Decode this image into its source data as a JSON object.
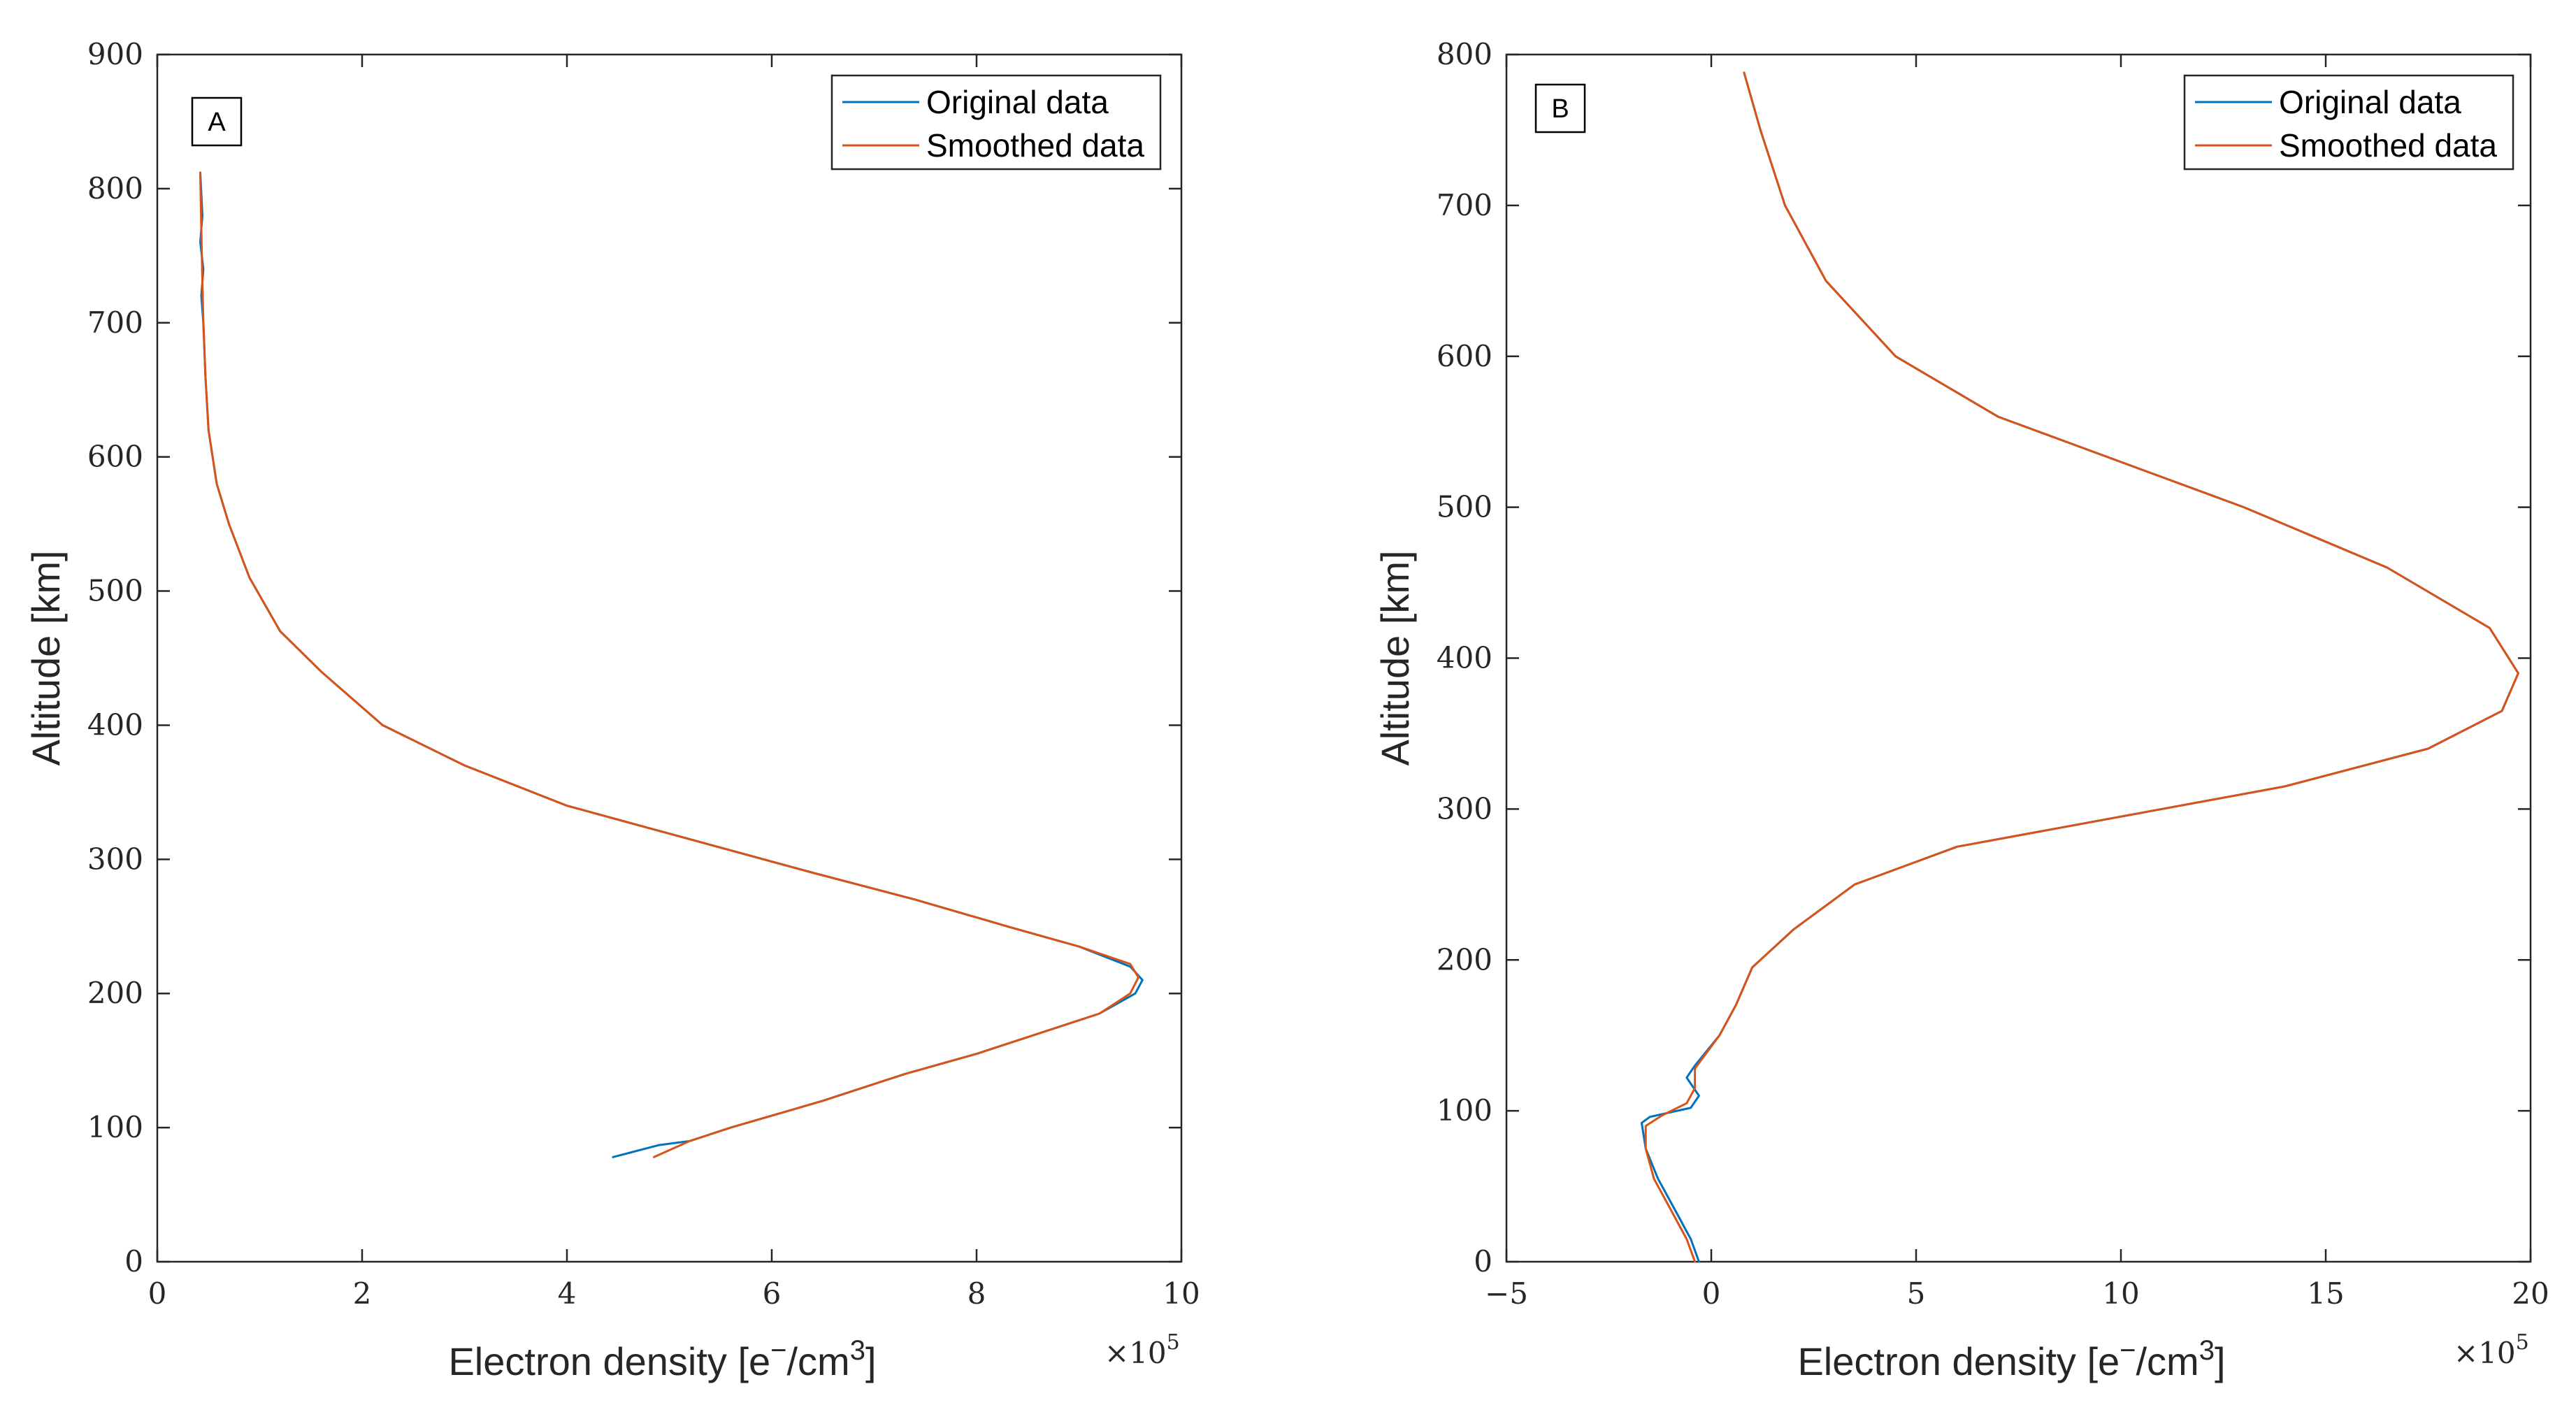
{
  "colors": {
    "original": "#0072BD",
    "smoothed": "#D95319",
    "axis": "#262626"
  },
  "chart_data": [
    {
      "type": "line",
      "panel_label": "A",
      "xlabel_main": "Electron density [e",
      "xlabel_sup1": "−",
      "xlabel_mid": "/cm",
      "xlabel_sup2": "3",
      "xlabel_end": "]",
      "ylabel": "Altitude [km]",
      "x_multiplier": "×10",
      "x_multiplier_exp": "5",
      "xlim": [
        0,
        10
      ],
      "ylim": [
        0,
        900
      ],
      "xticks": [
        0,
        2,
        4,
        6,
        8,
        10
      ],
      "yticks": [
        0,
        100,
        200,
        300,
        400,
        500,
        600,
        700,
        800,
        900
      ],
      "legend": [
        "Original data",
        "Smoothed data"
      ],
      "series": [
        {
          "name": "Original data",
          "x": [
            0.42,
            0.44,
            0.42,
            0.45,
            0.43,
            0.45,
            0.47,
            0.5,
            0.58,
            0.7,
            0.9,
            1.2,
            1.6,
            2.2,
            3.0,
            4.0,
            5.2,
            6.4,
            7.4,
            8.3,
            9.0,
            9.5,
            9.62,
            9.55,
            9.2,
            8.6,
            8.0,
            7.3,
            6.5,
            5.6,
            5.2,
            4.9,
            4.45
          ],
          "y": [
            812,
            780,
            760,
            740,
            720,
            700,
            660,
            620,
            580,
            550,
            510,
            470,
            440,
            400,
            370,
            340,
            315,
            290,
            270,
            250,
            235,
            220,
            210,
            200,
            185,
            170,
            155,
            140,
            120,
            100,
            90,
            87,
            78
          ]
        },
        {
          "name": "Smoothed data",
          "x": [
            0.42,
            0.43,
            0.44,
            0.45,
            0.47,
            0.5,
            0.58,
            0.7,
            0.9,
            1.2,
            1.6,
            2.2,
            3.0,
            4.0,
            5.2,
            6.4,
            7.4,
            8.3,
            9.0,
            9.5,
            9.58,
            9.5,
            9.2,
            8.6,
            8.0,
            7.3,
            6.5,
            5.6,
            5.2,
            4.85
          ],
          "y": [
            812,
            770,
            730,
            700,
            660,
            620,
            580,
            550,
            510,
            470,
            440,
            400,
            370,
            340,
            315,
            290,
            270,
            250,
            235,
            222,
            212,
            200,
            185,
            170,
            155,
            140,
            120,
            100,
            90,
            78
          ]
        }
      ]
    },
    {
      "type": "line",
      "panel_label": "B",
      "xlabel_main": "Electron density [e",
      "xlabel_sup1": "−",
      "xlabel_mid": "/cm",
      "xlabel_sup2": "3",
      "xlabel_end": "]",
      "ylabel": "Altitude [km]",
      "x_multiplier": "×10",
      "x_multiplier_exp": "5",
      "xlim": [
        -5,
        20
      ],
      "ylim": [
        0,
        800
      ],
      "xticks": [
        -5,
        0,
        5,
        10,
        15,
        20
      ],
      "xtick_labels": [
        "−5",
        "0",
        "5",
        "10",
        "15",
        "20"
      ],
      "yticks": [
        0,
        100,
        200,
        300,
        400,
        500,
        600,
        700,
        800
      ],
      "legend": [
        "Original data",
        "Smoothed data"
      ],
      "series": [
        {
          "name": "Original data",
          "x": [
            -0.3,
            -0.5,
            -0.9,
            -1.3,
            -1.6,
            -1.7,
            -1.5,
            -0.5,
            -0.3,
            -0.6,
            -0.4,
            0.2,
            0.6,
            1.0,
            2.0,
            3.5,
            6.0,
            10.0,
            14.0,
            17.5,
            19.3,
            19.7,
            19.0,
            16.5,
            13.0,
            10.0,
            7.0,
            4.5,
            2.8,
            1.8,
            1.2,
            0.8
          ],
          "y": [
            0,
            15,
            35,
            55,
            75,
            92,
            96,
            102,
            110,
            122,
            130,
            150,
            170,
            195,
            220,
            250,
            275,
            295,
            315,
            340,
            365,
            390,
            420,
            460,
            500,
            530,
            560,
            600,
            650,
            700,
            750,
            788
          ]
        },
        {
          "name": "Smoothed data",
          "x": [
            -0.4,
            -0.6,
            -1.0,
            -1.4,
            -1.6,
            -1.6,
            -1.2,
            -0.6,
            -0.4,
            -0.4,
            0.2,
            0.6,
            1.0,
            2.0,
            3.5,
            6.0,
            10.0,
            14.0,
            17.5,
            19.3,
            19.7,
            19.0,
            16.5,
            13.0,
            10.0,
            7.0,
            4.5,
            2.8,
            1.8,
            1.2,
            0.8
          ],
          "y": [
            0,
            15,
            35,
            55,
            75,
            90,
            97,
            105,
            115,
            128,
            150,
            170,
            195,
            220,
            250,
            275,
            295,
            315,
            340,
            365,
            390,
            420,
            460,
            500,
            530,
            560,
            600,
            650,
            700,
            750,
            788
          ]
        }
      ]
    }
  ]
}
